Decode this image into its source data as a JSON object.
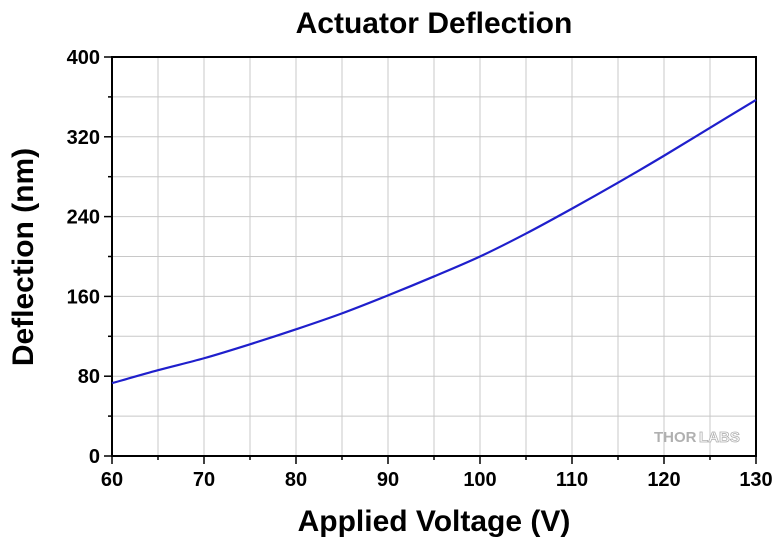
{
  "chart_data": {
    "type": "line",
    "title": "Actuator Deflection",
    "xlabel": "Applied Voltage (V)",
    "ylabel": "Deflection (nm)",
    "xlim": [
      60,
      130
    ],
    "ylim": [
      0,
      400
    ],
    "xticks": [
      60,
      70,
      80,
      90,
      100,
      110,
      120,
      130
    ],
    "yticks": [
      0,
      80,
      160,
      240,
      320,
      400
    ],
    "grid": true,
    "series": [
      {
        "color": "#1f1fcc",
        "x": [
          60,
          65,
          70,
          75,
          80,
          85,
          90,
          95,
          100,
          105,
          110,
          115,
          120,
          125,
          130
        ],
        "y": [
          73,
          86,
          98,
          112,
          127,
          143,
          161,
          180,
          200,
          223,
          248,
          274,
          301,
          329,
          357
        ]
      }
    ]
  },
  "watermark": {
    "part1": "THOR",
    "part2": "LABS"
  }
}
